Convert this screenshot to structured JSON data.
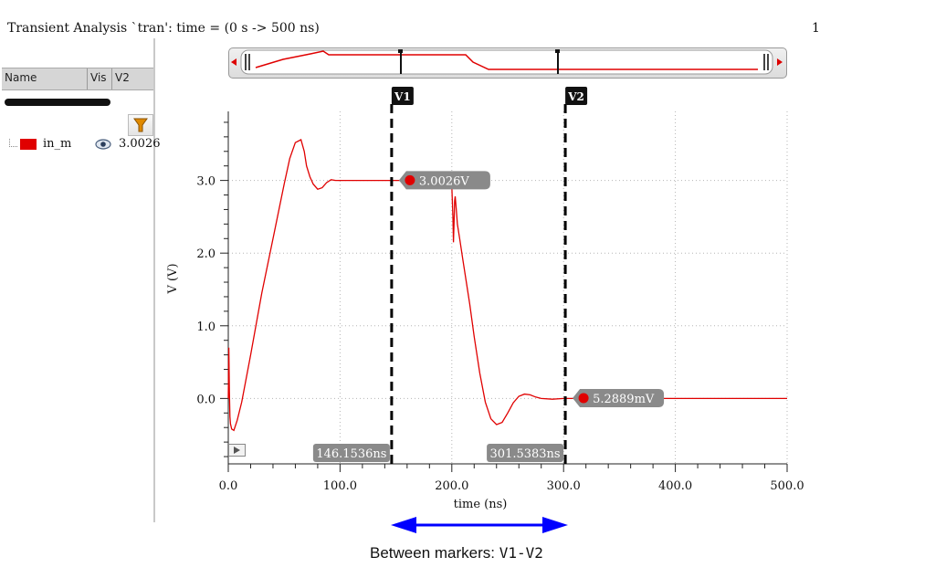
{
  "title": "Transient Analysis `tran': time = (0 s -> 500 ns)",
  "corner_number": "1",
  "browser": {
    "columns": [
      "Name",
      "Vis",
      "V2"
    ],
    "signal": {
      "name": "in_m",
      "value": "3.0026",
      "color": "#e00000"
    }
  },
  "markers": [
    {
      "label": "V1",
      "time_ns": 146.1536,
      "time_label": "146.1536ns",
      "value_label": "3.0026V",
      "value": 3.0026
    },
    {
      "label": "V2",
      "time_ns": 301.5383,
      "time_label": "301.5383ns",
      "value_label": "5.2889mV",
      "value": 0.0052889
    }
  ],
  "caption": {
    "text": "Between markers: ",
    "mono": "V1-V2"
  },
  "chart_data": {
    "type": "line",
    "xlabel": "time (ns)",
    "ylabel": "V (V)",
    "xlim": [
      0,
      500
    ],
    "ylim": [
      -0.9,
      3.95
    ],
    "xticks": [
      0,
      100,
      200,
      300,
      400,
      500
    ],
    "xtick_labels": [
      "0.0",
      "100.0",
      "200.0",
      "300.0",
      "400.0",
      "500.0"
    ],
    "yticks": [
      0,
      1,
      2,
      3
    ],
    "ytick_labels": [
      "0.0",
      "1.0",
      "2.0",
      "3.0"
    ],
    "grid": true,
    "series": [
      {
        "name": "in_m",
        "color": "#e00000",
        "x": [
          0,
          0.5,
          1,
          1.5,
          2,
          3,
          5,
          8,
          12,
          20,
          30,
          40,
          50,
          55,
          60,
          65,
          68,
          70,
          73,
          76,
          80,
          84,
          88,
          92,
          96,
          100,
          105,
          110,
          120,
          130,
          140,
          146,
          150,
          160,
          170,
          180,
          190,
          199,
          200,
          201,
          201.5,
          202,
          202.5,
          203,
          204,
          205,
          207,
          210,
          213,
          216,
          220,
          225,
          230,
          235,
          240,
          245,
          250,
          255,
          260,
          265,
          270,
          275,
          280,
          290,
          300,
          320,
          350,
          400,
          450,
          500
        ],
        "y": [
          0.0,
          0.7,
          0.1,
          -0.25,
          -0.35,
          -0.42,
          -0.44,
          -0.3,
          -0.05,
          0.6,
          1.45,
          2.2,
          2.95,
          3.3,
          3.52,
          3.56,
          3.4,
          3.2,
          3.05,
          2.95,
          2.88,
          2.9,
          2.97,
          3.01,
          3.0,
          3.0,
          3.0,
          3.0,
          3.0,
          3.0,
          3.0,
          3.0,
          3.0,
          3.0,
          3.0,
          3.0,
          3.0,
          3.0,
          2.92,
          2.5,
          2.15,
          2.4,
          2.72,
          2.78,
          2.6,
          2.4,
          2.2,
          1.9,
          1.6,
          1.3,
          0.85,
          0.35,
          -0.05,
          -0.28,
          -0.36,
          -0.33,
          -0.2,
          -0.06,
          0.03,
          0.06,
          0.05,
          0.02,
          0.0,
          -0.01,
          0.0,
          0.0,
          0.0,
          0.0,
          0.0,
          0.0
        ]
      }
    ]
  }
}
